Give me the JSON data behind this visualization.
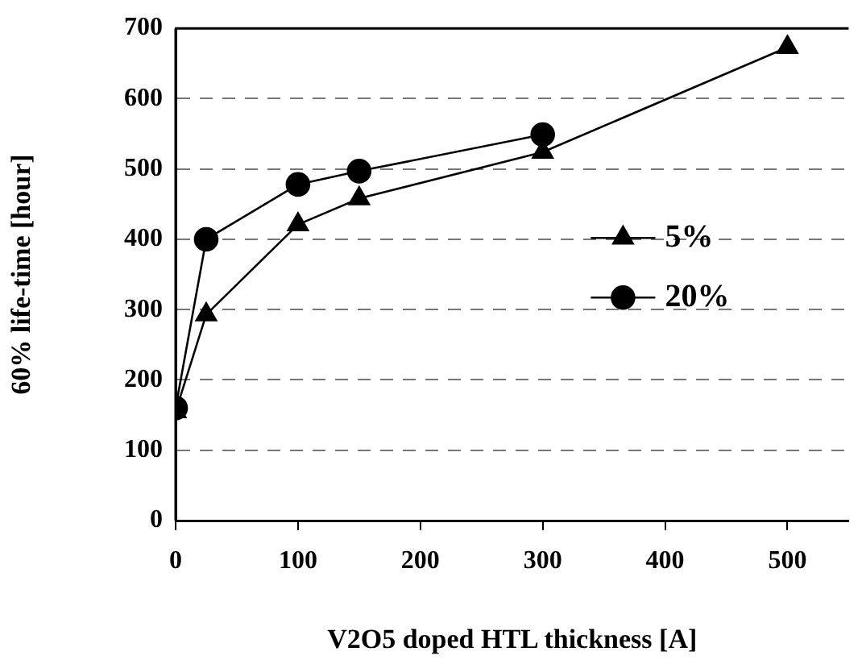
{
  "chart_data": {
    "type": "line",
    "xlabel": "V2O5 doped HTL thickness [A]",
    "ylabel": "60% life-time [hour]",
    "series": [
      {
        "name": "5%",
        "color": "#000000",
        "marker": "triangle",
        "x": [
          0,
          25,
          100,
          150,
          300,
          500
        ],
        "values": [
          155,
          293,
          421,
          458,
          524,
          673
        ]
      },
      {
        "name": "20%",
        "color": "#000000",
        "marker": "circle",
        "x": [
          0,
          25,
          100,
          150,
          300
        ],
        "values": [
          160,
          400,
          478,
          497,
          549
        ]
      }
    ],
    "xlim": [
      0,
      550
    ],
    "xticks": [
      0,
      100,
      200,
      300,
      400,
      500
    ],
    "ylim": [
      0,
      700
    ],
    "yticks": [
      0,
      100,
      200,
      300,
      400,
      500,
      600,
      700
    ],
    "grid": "y",
    "legend": "right",
    "line_style": "solid"
  }
}
